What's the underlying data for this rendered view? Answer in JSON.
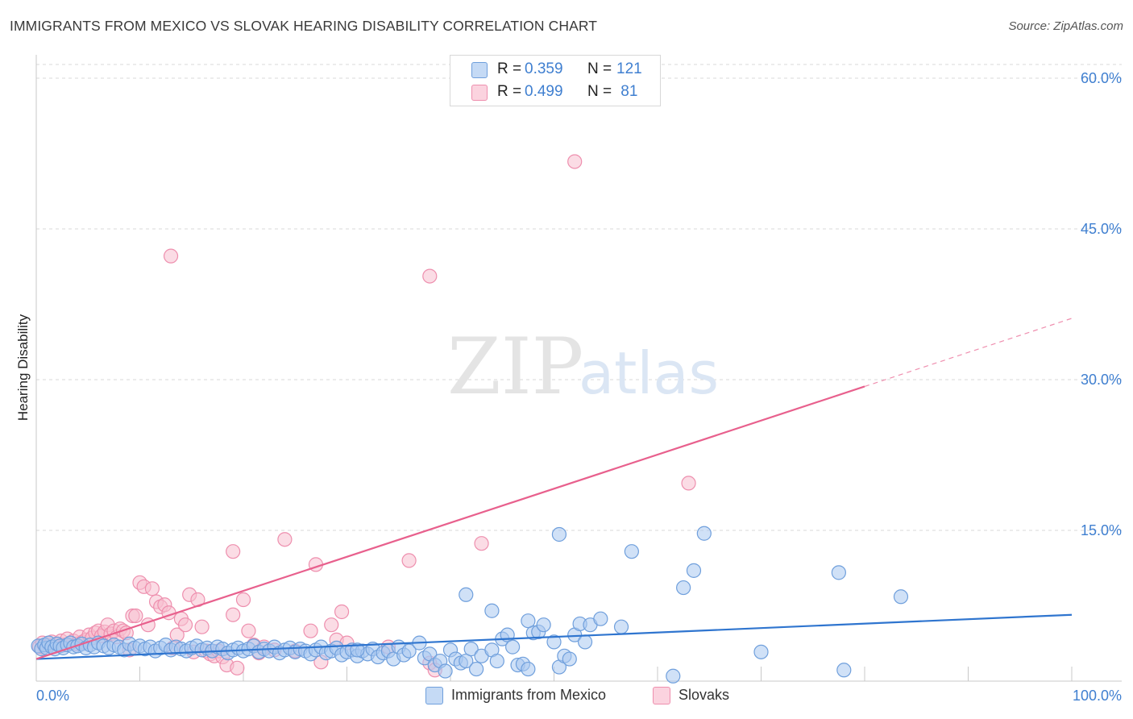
{
  "title": "IMMIGRANTS FROM MEXICO VS SLOVAK HEARING DISABILITY CORRELATION CHART",
  "source": "Source: ZipAtlas.com",
  "watermark": {
    "zip": "ZIP",
    "atlas": "atlas"
  },
  "colors": {
    "blue_fill": "#a9c8f0",
    "blue_stroke": "#6f9fdc",
    "blue_line": "#2f75cf",
    "pink_fill": "#f8bfd0",
    "pink_stroke": "#ee8fae",
    "pink_line": "#e8608d",
    "tick_text": "#3f7fd0",
    "grid": "#d9d9d9"
  },
  "legend": [
    {
      "r_label": "R =",
      "r_value": "0.359",
      "n_label": "N =",
      "n_value": "121"
    },
    {
      "r_label": "R =",
      "r_value": "0.499",
      "n_label": "N =",
      "n_value": " 81"
    }
  ],
  "bottom_legend": [
    {
      "label": "Immigrants from Mexico"
    },
    {
      "label": "Slovaks"
    }
  ],
  "chart_data": {
    "type": "scatter",
    "title": "IMMIGRANTS FROM MEXICO VS SLOVAK HEARING DISABILITY CORRELATION CHART",
    "xlabel": "",
    "ylabel": "Hearing Disability",
    "xlim": [
      0,
      100
    ],
    "ylim": [
      0,
      63
    ],
    "x_tick_labels": [
      "0.0%",
      "100.0%"
    ],
    "y_ticks": [
      15,
      30,
      45,
      60
    ],
    "y_tick_labels": [
      "15.0%",
      "30.0%",
      "45.0%",
      "60.0%"
    ],
    "grid": true,
    "series": [
      {
        "name": "Immigrants from Mexico",
        "color": "blue",
        "R": 0.359,
        "N": 121,
        "trend": {
          "x": [
            0,
            100
          ],
          "y": [
            2.2,
            6.6
          ],
          "solid_to": 100
        },
        "points": [
          [
            0.2,
            3.5
          ],
          [
            0.5,
            3.2
          ],
          [
            0.8,
            3.6
          ],
          [
            1.0,
            3.3
          ],
          [
            1.2,
            3.8
          ],
          [
            1.5,
            3.4
          ],
          [
            1.8,
            3.2
          ],
          [
            2.0,
            3.7
          ],
          [
            2.3,
            3.5
          ],
          [
            2.6,
            3.3
          ],
          [
            3.0,
            3.6
          ],
          [
            3.3,
            3.8
          ],
          [
            3.6,
            3.4
          ],
          [
            4.0,
            3.5
          ],
          [
            4.4,
            3.7
          ],
          [
            4.8,
            3.3
          ],
          [
            5.2,
            3.6
          ],
          [
            5.6,
            3.4
          ],
          [
            6.0,
            3.8
          ],
          [
            6.5,
            3.5
          ],
          [
            7.0,
            3.3
          ],
          [
            7.5,
            3.6
          ],
          [
            8.0,
            3.4
          ],
          [
            8.5,
            3.1
          ],
          [
            9.0,
            3.7
          ],
          [
            9.5,
            3.3
          ],
          [
            10.0,
            3.5
          ],
          [
            10.5,
            3.2
          ],
          [
            11.0,
            3.4
          ],
          [
            11.5,
            3.0
          ],
          [
            12.0,
            3.3
          ],
          [
            12.5,
            3.6
          ],
          [
            13.0,
            3.1
          ],
          [
            13.5,
            3.4
          ],
          [
            14.0,
            3.2
          ],
          [
            14.5,
            3.0
          ],
          [
            15.0,
            3.3
          ],
          [
            15.5,
            3.5
          ],
          [
            16.0,
            3.1
          ],
          [
            16.5,
            3.3
          ],
          [
            17.0,
            3.0
          ],
          [
            17.5,
            3.4
          ],
          [
            18.0,
            3.2
          ],
          [
            18.5,
            2.8
          ],
          [
            19.0,
            3.1
          ],
          [
            19.5,
            3.3
          ],
          [
            20.0,
            3.0
          ],
          [
            20.5,
            3.2
          ],
          [
            21.0,
            3.5
          ],
          [
            21.5,
            2.9
          ],
          [
            22.0,
            3.2
          ],
          [
            22.5,
            3.0
          ],
          [
            23.0,
            3.4
          ],
          [
            23.5,
            2.8
          ],
          [
            24.0,
            3.1
          ],
          [
            24.5,
            3.3
          ],
          [
            25.0,
            2.9
          ],
          [
            25.5,
            3.2
          ],
          [
            26.0,
            3.0
          ],
          [
            26.5,
            2.7
          ],
          [
            27.0,
            3.1
          ],
          [
            27.5,
            3.4
          ],
          [
            28.0,
            2.8
          ],
          [
            28.5,
            3.0
          ],
          [
            29.0,
            3.3
          ],
          [
            29.5,
            2.6
          ],
          [
            30.0,
            2.9
          ],
          [
            30.5,
            3.1
          ],
          [
            31.0,
            2.5
          ],
          [
            31.5,
            3.0
          ],
          [
            32.0,
            2.7
          ],
          [
            32.5,
            3.2
          ],
          [
            33.0,
            2.4
          ],
          [
            33.5,
            2.8
          ],
          [
            34.0,
            3.0
          ],
          [
            34.5,
            2.2
          ],
          [
            35.0,
            3.4
          ],
          [
            35.5,
            2.6
          ],
          [
            36.0,
            3.0
          ],
          [
            37.0,
            3.8
          ],
          [
            37.5,
            2.3
          ],
          [
            38.0,
            2.7
          ],
          [
            38.5,
            1.6
          ],
          [
            39.0,
            2.0
          ],
          [
            39.5,
            1.0
          ],
          [
            40.0,
            3.1
          ],
          [
            40.5,
            2.2
          ],
          [
            41.0,
            1.8
          ],
          [
            41.5,
            2.0
          ],
          [
            42.0,
            3.2
          ],
          [
            42.5,
            1.2
          ],
          [
            43.0,
            2.5
          ],
          [
            44.0,
            3.1
          ],
          [
            44.5,
            2.0
          ],
          [
            45.0,
            4.2
          ],
          [
            45.5,
            4.6
          ],
          [
            46.0,
            3.4
          ],
          [
            46.5,
            1.6
          ],
          [
            47.0,
            1.7
          ],
          [
            47.5,
            1.2
          ],
          [
            48.0,
            4.8
          ],
          [
            48.5,
            4.9
          ],
          [
            49.0,
            5.6
          ],
          [
            50.0,
            3.9
          ],
          [
            50.5,
            1.4
          ],
          [
            51.0,
            2.5
          ],
          [
            51.5,
            2.2
          ],
          [
            52.0,
            4.6
          ],
          [
            52.5,
            5.7
          ],
          [
            53.0,
            3.9
          ],
          [
            53.5,
            5.6
          ],
          [
            54.5,
            6.2
          ],
          [
            56.5,
            5.4
          ],
          [
            41.5,
            8.6
          ],
          [
            44.0,
            7.0
          ],
          [
            50.5,
            14.6
          ],
          [
            57.5,
            12.9
          ],
          [
            62.5,
            9.3
          ],
          [
            63.5,
            11.0
          ],
          [
            64.5,
            14.7
          ],
          [
            61.5,
            0.5
          ],
          [
            70.0,
            2.9
          ],
          [
            77.5,
            10.8
          ],
          [
            78.0,
            1.1
          ],
          [
            83.5,
            8.4
          ],
          [
            47.5,
            6.0
          ],
          [
            31.0,
            3.1
          ]
        ]
      },
      {
        "name": "Slovaks",
        "color": "pink",
        "R": 0.499,
        "N": 81,
        "trend": {
          "x": [
            0,
            100
          ],
          "y": [
            2.2,
            36.1
          ],
          "solid_to": 80
        },
        "points": [
          [
            0.3,
            3.4
          ],
          [
            0.6,
            3.8
          ],
          [
            0.9,
            3.2
          ],
          [
            1.2,
            3.6
          ],
          [
            1.5,
            3.9
          ],
          [
            1.8,
            3.5
          ],
          [
            2.1,
            3.7
          ],
          [
            2.4,
            4.0
          ],
          [
            2.7,
            3.6
          ],
          [
            3.0,
            4.2
          ],
          [
            3.3,
            3.8
          ],
          [
            3.6,
            4.0
          ],
          [
            3.9,
            3.7
          ],
          [
            4.2,
            4.4
          ],
          [
            4.5,
            3.9
          ],
          [
            4.8,
            4.1
          ],
          [
            5.1,
            4.6
          ],
          [
            5.4,
            4.3
          ],
          [
            5.7,
            4.8
          ],
          [
            6.0,
            5.0
          ],
          [
            6.3,
            4.5
          ],
          [
            6.6,
            4.9
          ],
          [
            6.9,
            5.6
          ],
          [
            7.2,
            4.7
          ],
          [
            7.5,
            5.0
          ],
          [
            7.8,
            4.4
          ],
          [
            8.1,
            5.2
          ],
          [
            8.4,
            5.0
          ],
          [
            8.7,
            4.8
          ],
          [
            9.0,
            3.1
          ],
          [
            9.3,
            6.5
          ],
          [
            9.6,
            6.5
          ],
          [
            10.0,
            9.8
          ],
          [
            10.4,
            9.4
          ],
          [
            10.8,
            5.6
          ],
          [
            11.2,
            9.2
          ],
          [
            11.6,
            7.9
          ],
          [
            12.0,
            7.4
          ],
          [
            12.4,
            7.6
          ],
          [
            12.8,
            6.8
          ],
          [
            13.2,
            3.3
          ],
          [
            13.6,
            4.6
          ],
          [
            14.0,
            6.2
          ],
          [
            14.4,
            5.6
          ],
          [
            14.8,
            8.6
          ],
          [
            15.2,
            2.9
          ],
          [
            15.6,
            8.1
          ],
          [
            16.0,
            5.4
          ],
          [
            16.4,
            3.0
          ],
          [
            16.8,
            2.7
          ],
          [
            17.2,
            2.5
          ],
          [
            17.6,
            3.0
          ],
          [
            18.0,
            2.4
          ],
          [
            18.4,
            1.6
          ],
          [
            19.0,
            12.9
          ],
          [
            19.4,
            1.3
          ],
          [
            20.0,
            8.1
          ],
          [
            20.5,
            5.0
          ],
          [
            21.0,
            3.6
          ],
          [
            21.5,
            2.8
          ],
          [
            22.0,
            3.4
          ],
          [
            23.0,
            3.1
          ],
          [
            24.0,
            14.1
          ],
          [
            25.0,
            3.0
          ],
          [
            26.5,
            5.0
          ],
          [
            27.0,
            11.6
          ],
          [
            27.5,
            1.9
          ],
          [
            28.5,
            5.6
          ],
          [
            29.0,
            4.1
          ],
          [
            29.5,
            6.9
          ],
          [
            30.0,
            3.8
          ],
          [
            34.0,
            3.4
          ],
          [
            36.0,
            12.0
          ],
          [
            38.0,
            1.8
          ],
          [
            38.5,
            1.1
          ],
          [
            43.0,
            13.7
          ],
          [
            19.0,
            6.6
          ],
          [
            13.0,
            42.3
          ],
          [
            38.0,
            40.3
          ],
          [
            52.0,
            51.7
          ],
          [
            63.0,
            19.7
          ]
        ]
      }
    ]
  }
}
